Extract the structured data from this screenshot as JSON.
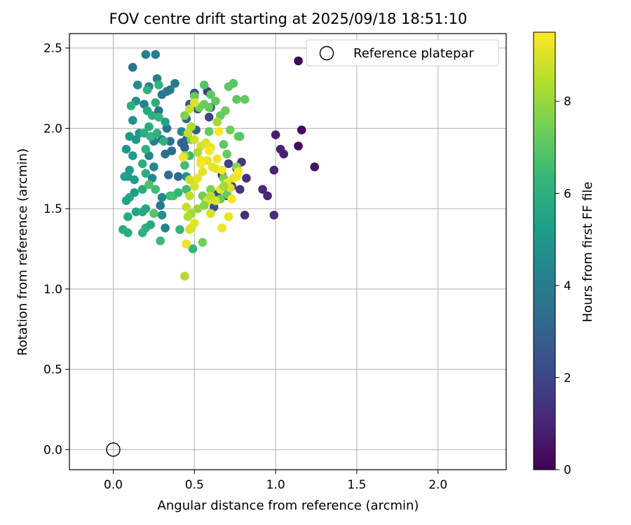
{
  "chart_data": {
    "type": "scatter",
    "title": "FOV centre drift starting at 2025/09/18 18:51:10",
    "xlabel": "Angular distance from reference (arcmin)",
    "ylabel": "Rotation from reference (arcmin)",
    "xlim": [
      -0.27,
      2.42
    ],
    "ylim": [
      -0.125,
      2.59
    ],
    "xticks": [
      0.0,
      0.5,
      1.0,
      1.5,
      2.0
    ],
    "xtick_labels": [
      "0.0",
      "0.5",
      "1.0",
      "1.5",
      "2.0"
    ],
    "yticks": [
      0.0,
      0.5,
      1.0,
      1.5,
      2.0,
      2.5
    ],
    "ytick_labels": [
      "0.0",
      "0.5",
      "1.0",
      "1.5",
      "2.0",
      "2.5"
    ],
    "grid": true,
    "legend": {
      "position": "top-right",
      "entries": [
        "Reference platepar"
      ]
    },
    "reference": {
      "x": 0.0,
      "y": 0.0,
      "label": "Reference platepar"
    },
    "colorbar": {
      "label": "Hours from first FF file",
      "min": 0,
      "max": 9.5,
      "ticks": [
        0,
        2,
        4,
        6,
        8
      ],
      "tick_labels": [
        "0",
        "2",
        "4",
        "6",
        "8"
      ],
      "colormap": [
        "#440154",
        "#482878",
        "#3e4989",
        "#31688e",
        "#26828e",
        "#1f9e89",
        "#35b779",
        "#6ece58",
        "#b5de2b",
        "#fde725"
      ]
    },
    "points": [
      [
        1.14,
        2.42,
        0.1
      ],
      [
        1.16,
        1.99,
        0.2
      ],
      [
        1.14,
        1.89,
        0.3
      ],
      [
        1.24,
        1.76,
        0.5
      ],
      [
        1.0,
        1.96,
        0.8
      ],
      [
        1.03,
        1.87,
        0.9
      ],
      [
        1.05,
        1.84,
        0.9
      ],
      [
        0.99,
        1.74,
        1.0
      ],
      [
        0.92,
        1.62,
        1.1
      ],
      [
        0.95,
        1.58,
        1.1
      ],
      [
        0.99,
        1.46,
        1.2
      ],
      [
        0.81,
        1.46,
        1.3
      ],
      [
        0.82,
        1.69,
        1.4
      ],
      [
        0.78,
        1.62,
        1.5
      ],
      [
        0.79,
        1.79,
        1.6
      ],
      [
        0.76,
        1.75,
        1.7
      ],
      [
        0.71,
        1.78,
        1.9
      ],
      [
        0.73,
        1.64,
        2.0
      ],
      [
        0.67,
        1.71,
        2.1
      ],
      [
        0.7,
        1.58,
        2.1
      ],
      [
        0.64,
        1.59,
        2.2
      ],
      [
        0.62,
        1.51,
        2.3
      ],
      [
        0.58,
        2.23,
        1.6
      ],
      [
        0.6,
        2.13,
        1.8
      ],
      [
        0.59,
        2.07,
        2.0
      ],
      [
        0.5,
        2.22,
        2.4
      ],
      [
        0.52,
        2.12,
        2.5
      ],
      [
        0.47,
        2.15,
        2.7
      ],
      [
        0.45,
        2.06,
        2.8
      ],
      [
        0.51,
        1.99,
        2.9
      ],
      [
        0.45,
        1.93,
        3.0
      ],
      [
        0.42,
        1.91,
        3.1
      ],
      [
        0.4,
        1.7,
        3.2
      ],
      [
        0.36,
        1.86,
        3.3
      ],
      [
        0.34,
        1.71,
        3.4
      ],
      [
        0.32,
        1.84,
        3.4
      ],
      [
        0.35,
        1.92,
        3.5
      ],
      [
        0.33,
        2.0,
        3.5
      ],
      [
        0.3,
        1.93,
        3.6
      ],
      [
        0.28,
        2.11,
        3.6
      ],
      [
        0.3,
        2.21,
        3.7
      ],
      [
        0.33,
        2.23,
        3.8
      ],
      [
        0.38,
        2.28,
        3.9
      ],
      [
        0.35,
        2.24,
        3.8
      ],
      [
        0.27,
        2.31,
        4.0
      ],
      [
        0.26,
        2.46,
        4.0
      ],
      [
        0.2,
        2.46,
        4.2
      ],
      [
        0.12,
        2.38,
        3.6
      ],
      [
        0.22,
        2.26,
        4.2
      ],
      [
        0.19,
        2.15,
        4.3
      ],
      [
        0.25,
        1.92,
        4.2
      ],
      [
        0.22,
        1.83,
        4.3
      ],
      [
        0.25,
        1.76,
        4.4
      ],
      [
        0.24,
        1.69,
        4.4
      ],
      [
        0.3,
        1.57,
        4.5
      ],
      [
        0.29,
        1.52,
        3.8
      ],
      [
        0.32,
        1.38,
        4.2
      ],
      [
        0.3,
        1.46,
        4.8
      ],
      [
        0.44,
        1.88,
        3.0
      ],
      [
        0.42,
        1.98,
        4.5
      ],
      [
        0.45,
        1.7,
        4.7
      ],
      [
        0.15,
        2.27,
        4.6
      ],
      [
        0.14,
        2.17,
        4.8
      ],
      [
        0.12,
        2.05,
        4.9
      ],
      [
        0.16,
        1.97,
        5.0
      ],
      [
        0.14,
        1.93,
        5.1
      ],
      [
        0.1,
        1.95,
        5.0
      ],
      [
        0.08,
        1.87,
        4.9
      ],
      [
        0.12,
        1.83,
        5.2
      ],
      [
        0.1,
        1.74,
        5.1
      ],
      [
        0.13,
        1.68,
        5.3
      ],
      [
        0.09,
        1.7,
        5.2
      ],
      [
        0.07,
        1.7,
        5.4
      ],
      [
        0.13,
        1.6,
        5.3
      ],
      [
        0.1,
        1.57,
        5.6
      ],
      [
        0.08,
        1.55,
        5.5
      ],
      [
        0.14,
        1.48,
        5.5
      ],
      [
        0.18,
        1.48,
        5.7
      ],
      [
        0.09,
        1.45,
        5.8
      ],
      [
        0.06,
        1.37,
        5.8
      ],
      [
        0.09,
        1.35,
        5.9
      ],
      [
        0.2,
        1.38,
        6.0
      ],
      [
        0.18,
        1.35,
        6.1
      ],
      [
        0.23,
        1.4,
        5.7
      ],
      [
        0.2,
        1.5,
        5.6
      ],
      [
        0.18,
        1.62,
        5.8
      ],
      [
        0.2,
        1.72,
        5.9
      ],
      [
        0.18,
        1.78,
        6.0
      ],
      [
        0.2,
        1.87,
        6.1
      ],
      [
        0.19,
        1.97,
        5.9
      ],
      [
        0.22,
        2.01,
        5.8
      ],
      [
        0.24,
        2.08,
        6.0
      ],
      [
        0.28,
        2.07,
        6.2
      ],
      [
        0.27,
        1.97,
        6.1
      ],
      [
        0.23,
        1.95,
        6.3
      ],
      [
        0.21,
        2.11,
        5.7
      ],
      [
        0.26,
        2.16,
        5.9
      ],
      [
        0.21,
        2.24,
        6.0
      ],
      [
        0.28,
        2.27,
        6.2
      ],
      [
        0.11,
        2.14,
        6.0
      ],
      [
        0.31,
        1.92,
        6.2
      ],
      [
        0.32,
        2.04,
        5.5
      ],
      [
        0.29,
        1.3,
        6.4
      ],
      [
        0.35,
        1.58,
        6.5
      ],
      [
        0.37,
        1.58,
        6.7
      ],
      [
        0.4,
        1.6,
        6.3
      ],
      [
        0.41,
        1.37,
        6.2
      ],
      [
        0.44,
        1.77,
        6.6
      ],
      [
        0.47,
        1.83,
        6.4
      ],
      [
        0.45,
        1.62,
        6.5
      ],
      [
        0.49,
        1.25,
        6.2
      ],
      [
        0.26,
        1.62,
        6.5
      ],
      [
        0.22,
        1.65,
        6.8
      ],
      [
        0.25,
        1.47,
        6.9
      ],
      [
        0.56,
        2.27,
        6.9
      ],
      [
        0.6,
        2.21,
        7.0
      ],
      [
        0.63,
        2.17,
        7.1
      ],
      [
        0.59,
        2.13,
        7.2
      ],
      [
        0.56,
        2.15,
        7.3
      ],
      [
        0.53,
        2.13,
        7.4
      ],
      [
        0.5,
        2.2,
        7.2
      ],
      [
        0.71,
        2.26,
        7.1
      ],
      [
        0.74,
        2.28,
        7.0
      ],
      [
        0.76,
        2.18,
        7.1
      ],
      [
        0.81,
        2.18,
        7.2
      ],
      [
        0.69,
        2.11,
        7.3
      ],
      [
        0.66,
        2.08,
        7.2
      ],
      [
        0.72,
        1.99,
        7.4
      ],
      [
        0.77,
        1.95,
        7.3
      ],
      [
        0.78,
        1.95,
        7.0
      ],
      [
        0.59,
        1.98,
        7.1
      ],
      [
        0.68,
        1.9,
        7.1
      ],
      [
        0.7,
        1.84,
        7.2
      ],
      [
        0.55,
        1.29,
        7.4
      ],
      [
        0.57,
        1.54,
        7.5
      ],
      [
        0.55,
        1.58,
        7.4
      ],
      [
        0.6,
        1.62,
        7.6
      ],
      [
        0.66,
        1.56,
        7.3
      ],
      [
        0.7,
        1.59,
        7.2
      ],
      [
        0.68,
        1.69,
        7.5
      ],
      [
        0.76,
        1.76,
        7.8
      ],
      [
        0.48,
        1.93,
        7.5
      ],
      [
        0.44,
        2.08,
        7.6
      ],
      [
        0.44,
        1.83,
        7.9
      ],
      [
        0.48,
        1.47,
        8.2
      ],
      [
        0.52,
        1.5,
        8.0
      ],
      [
        0.44,
        1.08,
        8.4
      ],
      [
        0.46,
        1.45,
        8.4
      ],
      [
        0.48,
        2.01,
        8.3
      ],
      [
        0.46,
        1.97,
        8.6
      ],
      [
        0.47,
        2.12,
        8.7
      ],
      [
        0.5,
        1.93,
        8.8
      ],
      [
        0.54,
        1.89,
        8.9
      ],
      [
        0.57,
        1.91,
        9.0
      ],
      [
        0.6,
        1.88,
        9.1
      ],
      [
        0.58,
        1.8,
        9.2
      ],
      [
        0.54,
        1.8,
        9.3
      ],
      [
        0.55,
        1.73,
        9.1
      ],
      [
        0.61,
        1.76,
        9.2
      ],
      [
        0.64,
        1.81,
        9.3
      ],
      [
        0.63,
        1.75,
        9.1
      ],
      [
        0.67,
        1.74,
        9.4
      ],
      [
        0.7,
        1.66,
        9.2
      ],
      [
        0.72,
        1.63,
        9.0
      ],
      [
        0.74,
        1.69,
        9.1
      ],
      [
        0.76,
        1.7,
        9.3
      ],
      [
        0.77,
        1.73,
        9.4
      ],
      [
        0.66,
        1.62,
        9.2
      ],
      [
        0.63,
        1.55,
        9.0
      ],
      [
        0.6,
        1.47,
        8.9
      ],
      [
        0.5,
        1.64,
        8.9
      ],
      [
        0.47,
        1.68,
        8.8
      ],
      [
        0.47,
        1.58,
        8.6
      ],
      [
        0.45,
        1.51,
        8.7
      ],
      [
        0.48,
        1.38,
        8.8
      ],
      [
        0.47,
        1.37,
        9.0
      ],
      [
        0.45,
        1.28,
        9.2
      ],
      [
        0.5,
        1.41,
        9.1
      ],
      [
        0.58,
        1.55,
        9.0
      ],
      [
        0.71,
        1.45,
        9.2
      ],
      [
        0.67,
        1.38,
        9.3
      ],
      [
        0.52,
        1.69,
        9.2
      ],
      [
        0.54,
        1.78,
        9.4
      ],
      [
        0.59,
        1.86,
        9.5
      ],
      [
        0.65,
        1.98,
        9.4
      ],
      [
        0.43,
        1.82,
        9.3
      ],
      [
        0.73,
        1.56,
        9.4
      ],
      [
        0.6,
        1.58,
        8.5
      ],
      [
        0.68,
        1.64,
        8.1
      ],
      [
        0.52,
        1.85,
        8.4
      ],
      [
        0.64,
        2.04,
        8.2
      ],
      [
        0.5,
        2.16,
        9.0
      ],
      [
        0.56,
        1.52,
        7.8
      ]
    ]
  }
}
